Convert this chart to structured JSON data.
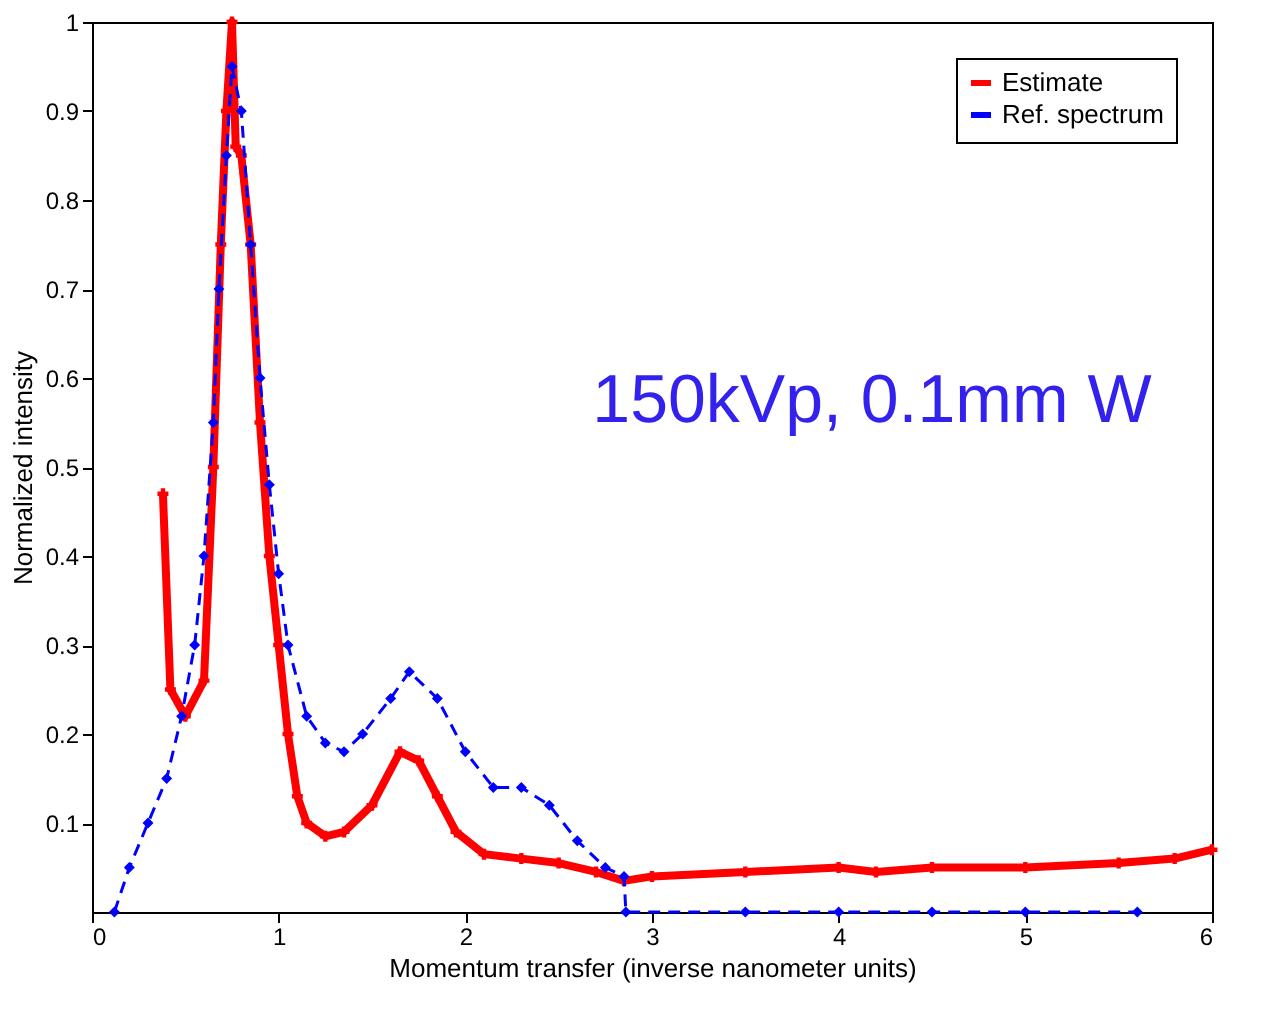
{
  "chart_data": {
    "type": "line",
    "xlabel": "Momentum transfer (inverse nanometer units)",
    "ylabel": "Normalized intensity",
    "annotations": [
      "150kVp, 0.1mm W"
    ],
    "xlim": [
      0,
      6
    ],
    "ylim": [
      0,
      1
    ],
    "xticks": [
      0,
      1,
      2,
      3,
      4,
      5,
      6
    ],
    "yticks": [
      0.1,
      0.2,
      0.3,
      0.4,
      0.5,
      0.6,
      0.7,
      0.8,
      0.9,
      1
    ],
    "grid": false,
    "legend": "top right",
    "series": [
      {
        "name": "Estimate",
        "color": "#ff0000",
        "line_style": "solid",
        "marker": "cross",
        "x": [
          0.38,
          0.42,
          0.5,
          0.6,
          0.65,
          0.69,
          0.72,
          0.75,
          0.77,
          0.8,
          0.85,
          0.9,
          0.95,
          1.0,
          1.05,
          1.1,
          1.15,
          1.25,
          1.35,
          1.5,
          1.65,
          1.75,
          1.85,
          1.95,
          2.1,
          2.3,
          2.5,
          2.7,
          2.85,
          3.0,
          3.5,
          4.0,
          4.2,
          4.5,
          5.0,
          5.5,
          5.8,
          6.0
        ],
        "values": [
          0.47,
          0.25,
          0.22,
          0.26,
          0.5,
          0.75,
          0.9,
          1.0,
          0.86,
          0.85,
          0.75,
          0.55,
          0.4,
          0.3,
          0.2,
          0.13,
          0.1,
          0.085,
          0.09,
          0.12,
          0.18,
          0.17,
          0.13,
          0.09,
          0.065,
          0.06,
          0.055,
          0.045,
          0.035,
          0.04,
          0.045,
          0.05,
          0.045,
          0.05,
          0.05,
          0.055,
          0.06,
          0.07
        ]
      },
      {
        "name": "Ref. spectrum",
        "color": "#0000ff",
        "line_style": "dashed",
        "marker": "diamond",
        "x": [
          0.12,
          0.2,
          0.3,
          0.4,
          0.48,
          0.55,
          0.6,
          0.65,
          0.68,
          0.72,
          0.75,
          0.8,
          0.85,
          0.9,
          0.95,
          1.0,
          1.05,
          1.15,
          1.25,
          1.35,
          1.45,
          1.6,
          1.7,
          1.85,
          2.0,
          2.15,
          2.3,
          2.45,
          2.6,
          2.75,
          2.85,
          2.86,
          3.5,
          4.0,
          4.5,
          5.0,
          5.6
        ],
        "values": [
          0.0,
          0.05,
          0.1,
          0.15,
          0.22,
          0.3,
          0.4,
          0.55,
          0.7,
          0.85,
          0.95,
          0.9,
          0.75,
          0.6,
          0.48,
          0.38,
          0.3,
          0.22,
          0.19,
          0.18,
          0.2,
          0.24,
          0.27,
          0.24,
          0.18,
          0.14,
          0.14,
          0.12,
          0.08,
          0.05,
          0.04,
          0.0,
          0.0,
          0.0,
          0.0,
          0.0,
          0.0
        ]
      }
    ]
  }
}
